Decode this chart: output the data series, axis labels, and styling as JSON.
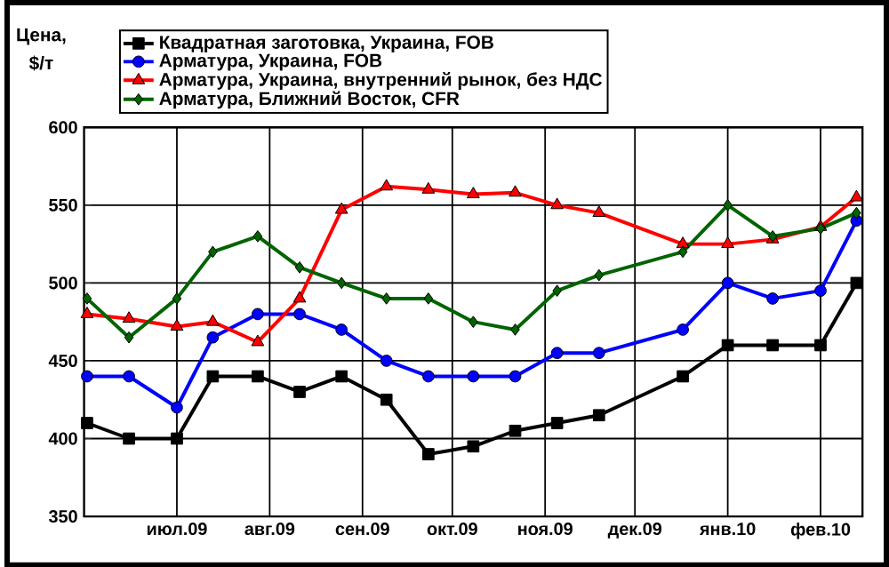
{
  "chart_data": {
    "type": "line",
    "ylabel": "Цена, $/т",
    "x": [
      "2009-06-01",
      "2009-06-15",
      "2009-07-01",
      "2009-07-13",
      "2009-07-28",
      "2009-08-11",
      "2009-08-25",
      "2009-09-09",
      "2009-09-23",
      "2009-10-08",
      "2009-10-22",
      "2009-11-05",
      "2009-11-19",
      "2009-12-17",
      "2010-01-01",
      "2010-01-16",
      "2010-02-01",
      "2010-02-13"
    ],
    "series": [
      {
        "name": "Квадратная заготовка, Украина, FOB",
        "color": "#000000",
        "marker": "square",
        "values": [
          410,
          400,
          400,
          440,
          440,
          430,
          440,
          425,
          390,
          395,
          405,
          410,
          415,
          440,
          460,
          460,
          460,
          500
        ]
      },
      {
        "name": "Арматура, Украина, FOB",
        "color": "#0000ff",
        "marker": "circle",
        "values": [
          440,
          440,
          420,
          465,
          480,
          480,
          470,
          450,
          440,
          440,
          440,
          455,
          455,
          470,
          500,
          490,
          495,
          540
        ]
      },
      {
        "name": "Арматура, Украина, внутренний рынок, без НДС",
        "color": "#ff0000",
        "marker": "triangle",
        "values": [
          480,
          477,
          472,
          475,
          462,
          490,
          547,
          562,
          560,
          557,
          558,
          550,
          545,
          525,
          525,
          528,
          536,
          555
        ]
      },
      {
        "name": "Арматура, Ближний Восток, CFR",
        "color": "#006400",
        "marker": "diamond",
        "values": [
          490,
          465,
          490,
          520,
          530,
          510,
          500,
          490,
          490,
          475,
          470,
          495,
          505,
          520,
          550,
          530,
          535,
          545
        ]
      }
    ],
    "xlim": [
      "2009-05-31",
      "2010-02-15"
    ],
    "xticks": [
      {
        "value": "2009-07-01",
        "label": "июл.09"
      },
      {
        "value": "2009-08-01",
        "label": "авг.09"
      },
      {
        "value": "2009-09-01",
        "label": "сен.09"
      },
      {
        "value": "2009-10-01",
        "label": "окт.09"
      },
      {
        "value": "2009-11-01",
        "label": "ноя.09"
      },
      {
        "value": "2009-12-01",
        "label": "дек.09"
      },
      {
        "value": "2010-01-01",
        "label": "янв.10"
      },
      {
        "value": "2010-02-01",
        "label": "фев.10"
      }
    ],
    "ylim": [
      350,
      600
    ],
    "yticks": [
      350,
      400,
      450,
      500,
      550,
      600
    ],
    "grid": true,
    "legend": "top",
    "line_style": "solid"
  }
}
